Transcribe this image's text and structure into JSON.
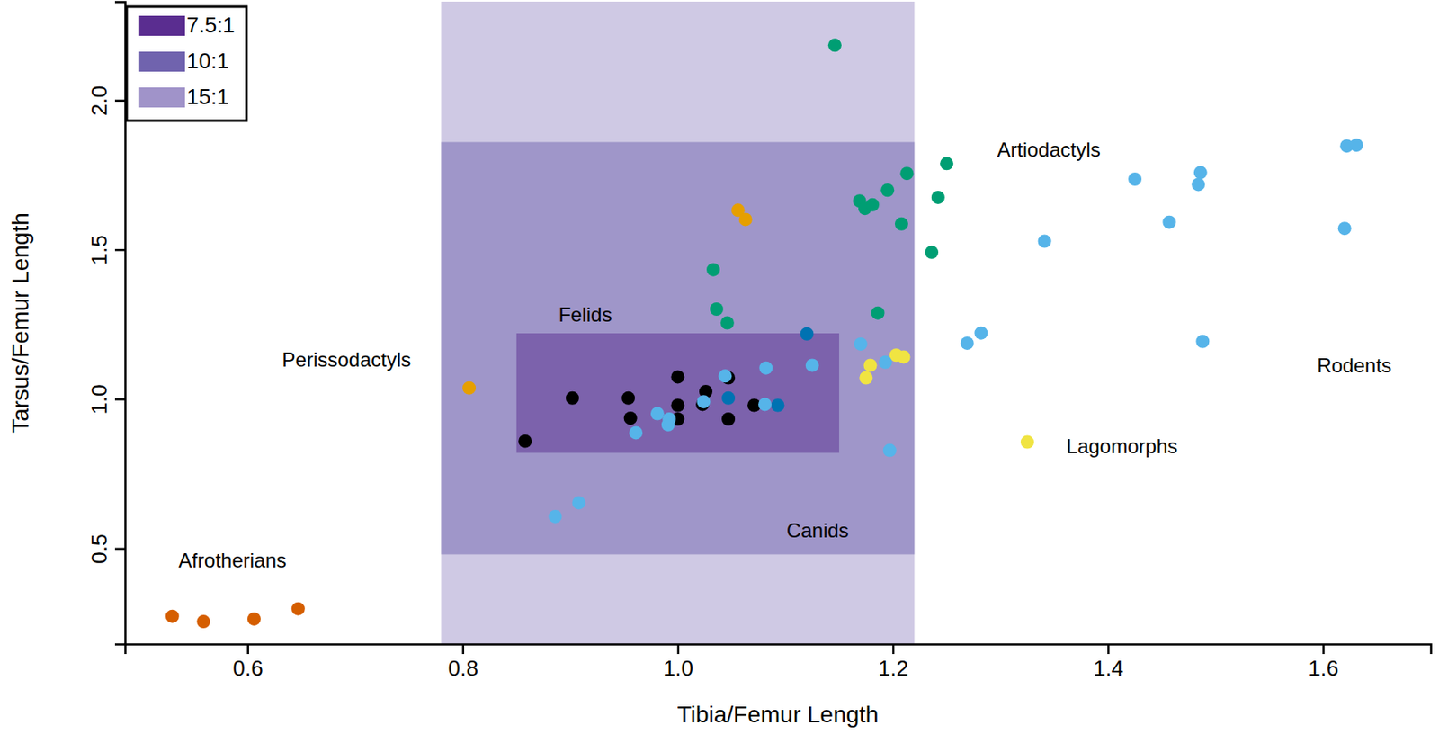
{
  "chart_data": {
    "type": "scatter",
    "x_label": "Tibia/Femur Length",
    "y_label": "Tarsus/Femur Length",
    "xlim": [
      0.486,
      1.7
    ],
    "ylim": [
      0.18,
      2.33
    ],
    "xticks": [
      0.6,
      0.8,
      {
        "value": 1,
        "label": "1.0"
      },
      1.2,
      1.4,
      1.6
    ],
    "yticks": [
      0.5,
      {
        "value": 1,
        "label": "1.0"
      },
      1.5,
      {
        "value": 2,
        "label": "2.0"
      }
    ],
    "legend": "top-left",
    "regions": [
      {
        "name": "7.5:1",
        "color": "#5a2d90",
        "x": [
          0.85,
          1.15
        ],
        "y": [
          0.82,
          1.22
        ]
      },
      {
        "name": "10:1",
        "color": "#7063ae",
        "x": [
          0.78,
          1.22
        ],
        "y": [
          0.48,
          1.86
        ]
      },
      {
        "name": "15:1",
        "color": "#a093c9",
        "x": [
          0.78,
          1.22
        ],
        "y": [
          0.18,
          2.33
        ]
      }
    ],
    "series": [
      {
        "name": "Afrotherians",
        "color": "#d55e00",
        "x": [
          0.53,
          0.559,
          0.606,
          0.647
        ],
        "values": [
          0.273,
          0.255,
          0.264,
          0.298
        ]
      },
      {
        "name": "Perissodactyls",
        "color": "#e69f00",
        "x": [
          0.806,
          1.056,
          1.063
        ],
        "values": [
          1.037,
          1.632,
          1.601
        ]
      },
      {
        "name": "Felids",
        "color": "#000000",
        "x": [
          0.858,
          0.902,
          0.954,
          0.956,
          1.0,
          1.0,
          1.0,
          1.026,
          1.023,
          1.047,
          1.047,
          1.071
        ],
        "values": [
          0.859,
          1.003,
          1.003,
          0.936,
          1.074,
          0.979,
          0.933,
          1.025,
          0.982,
          1.071,
          0.933,
          0.979
        ]
      },
      {
        "name": "Canids",
        "color": "#0072b2",
        "x": [
          1.12,
          1.047,
          1.093
        ],
        "values": [
          1.218,
          1.003,
          0.979
        ]
      },
      {
        "name": "Artiodactyls",
        "color": "#009e73",
        "x": [
          1.146,
          1.033,
          1.036,
          1.046,
          1.169,
          1.174,
          1.181,
          1.195,
          1.213,
          1.25,
          1.242,
          1.208,
          1.236,
          1.186
        ],
        "values": [
          2.184,
          1.433,
          1.301,
          1.255,
          1.663,
          1.638,
          1.65,
          1.699,
          1.755,
          1.788,
          1.675,
          1.586,
          1.491,
          1.288
        ]
      },
      {
        "name": "Lagomorphs",
        "color": "#f0e442",
        "x": [
          1.175,
          1.179,
          1.203,
          1.21,
          1.325
        ],
        "values": [
          1.071,
          1.113,
          1.147,
          1.141,
          0.856
        ]
      },
      {
        "name": "Rodents",
        "color": "#56b4e9",
        "x": [
          0.886,
          0.908,
          0.961,
          0.981,
          0.991,
          0.992,
          1.024,
          1.044,
          1.082,
          1.081,
          1.125,
          1.17,
          1.193,
          1.197,
          1.269,
          1.282,
          1.341,
          1.425,
          1.457,
          1.486,
          1.484,
          1.488,
          1.62,
          1.622,
          1.631
        ],
        "values": [
          0.607,
          0.653,
          0.887,
          0.951,
          0.914,
          0.933,
          0.991,
          1.077,
          1.104,
          0.982,
          1.113,
          1.184,
          1.123,
          0.828,
          1.187,
          1.221,
          1.528,
          1.736,
          1.592,
          1.758,
          1.718,
          1.193,
          1.571,
          1.847,
          1.85
        ]
      }
    ]
  }
}
